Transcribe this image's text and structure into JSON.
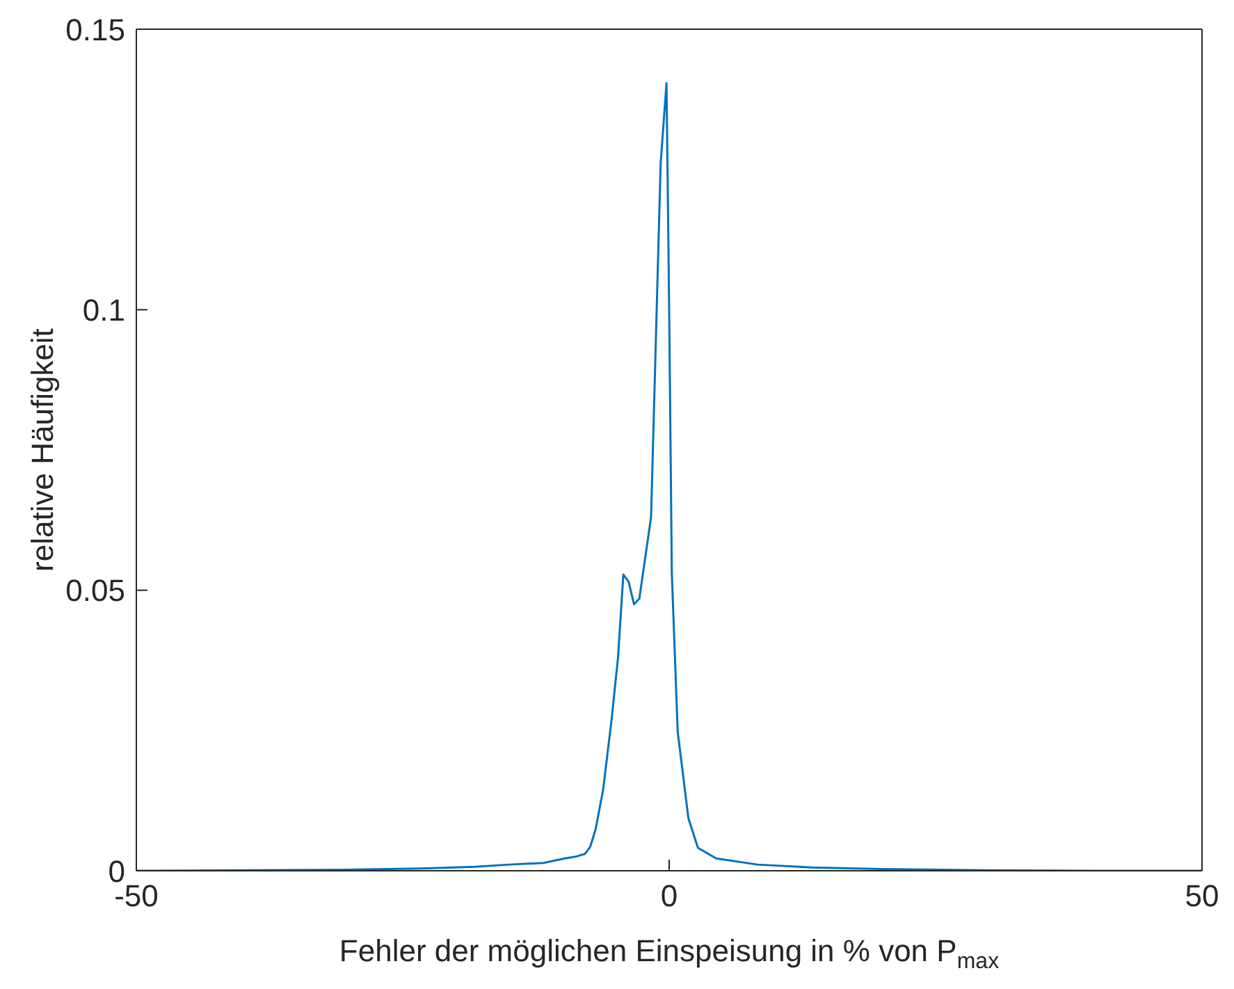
{
  "chart_data": {
    "type": "line",
    "xlabel": "Fehler der möglichen Einspeisung in % von P$_{max}$",
    "ylabel": "relative Häufigkeit",
    "x": [
      -50,
      -40,
      -30,
      -23.4,
      -18.2,
      -15,
      -11.8,
      -9.8,
      -8.8,
      -7.9,
      -7.4,
      -6.9,
      -6.2,
      -5.4,
      -4.8,
      -4.3,
      -3.8,
      -3.3,
      -2.8,
      -1.7,
      -0.8,
      -0.25,
      0,
      0.25,
      0.8,
      1.8,
      2.7,
      4.4,
      8.3,
      13.4,
      19.9,
      29.6,
      40,
      50
    ],
    "series": [
      {
        "color": "#0072bd",
        "values": [
          0,
          0.0001,
          0.0002,
          0.0004,
          0.0007,
          0.0011,
          0.0014,
          0.0022,
          0.0025,
          0.003,
          0.0043,
          0.0074,
          0.0144,
          0.027,
          0.038,
          0.0528,
          0.0515,
          0.0475,
          0.0485,
          0.063,
          0.126,
          0.1404,
          0.1,
          0.053,
          0.0248,
          0.0094,
          0.0041,
          0.0022,
          0.0011,
          0.0006,
          0.0003,
          0.0001,
          0,
          0
        ]
      }
    ],
    "xlim": [
      -50,
      50
    ],
    "xticks": [
      -50,
      0,
      50
    ],
    "ylim": [
      0,
      0.15
    ],
    "yticks": [
      0,
      0.05,
      0.1,
      0.15
    ],
    "grid": false,
    "legend": false,
    "marker": "none",
    "line_style": "solid"
  }
}
